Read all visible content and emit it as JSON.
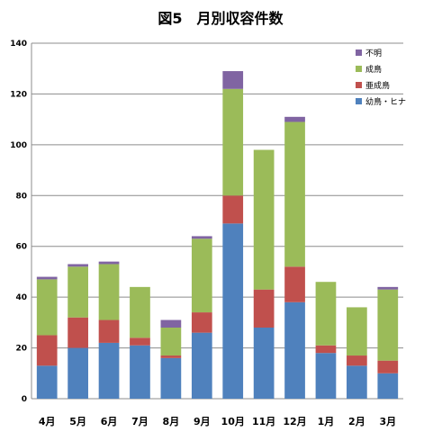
{
  "chart_data": {
    "type": "bar",
    "stacked": true,
    "title": "図5　月別収容件数",
    "categories": [
      "4月",
      "5月",
      "6月",
      "7月",
      "8月",
      "9月",
      "10月",
      "11月",
      "12月",
      "1月",
      "2月",
      "3月"
    ],
    "ylim": [
      0,
      140
    ],
    "yticks": [
      0,
      20,
      40,
      60,
      80,
      100,
      120,
      140
    ],
    "grid": true,
    "legend_position": "top-right",
    "series": [
      {
        "name": "幼鳥・ヒナ",
        "color": "#4f81bd",
        "values": [
          13,
          20,
          22,
          21,
          16,
          26,
          69,
          28,
          38,
          18,
          13,
          10
        ]
      },
      {
        "name": "亜成鳥",
        "color": "#c0504d",
        "values": [
          12,
          12,
          9,
          3,
          1,
          8,
          11,
          15,
          14,
          3,
          4,
          5
        ]
      },
      {
        "name": "成鳥",
        "color": "#9bbb59",
        "values": [
          22,
          20,
          22,
          20,
          11,
          29,
          42,
          55,
          57,
          25,
          19,
          28
        ]
      },
      {
        "name": "不明",
        "color": "#8064a2",
        "values": [
          1,
          1,
          1,
          0,
          3,
          1,
          7,
          0,
          2,
          0,
          0,
          1
        ]
      }
    ],
    "legend_order": [
      "不明",
      "成鳥",
      "亜成鳥",
      "幼鳥・ヒナ"
    ]
  }
}
